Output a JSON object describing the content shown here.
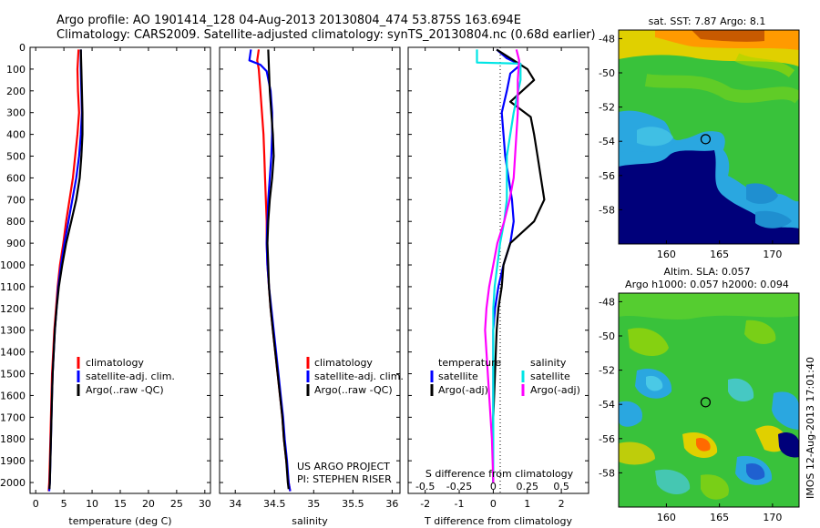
{
  "header": {
    "line1": "Argo profile: AO 1901414_128 04-Aug-2013 20130804_474 53.875S 163.694E",
    "line2": "Climatology: CARS2009. Satellite-adjusted climatology: synTS_20130804.nc (0.68d earlier)"
  },
  "credits": {
    "line1": "US ARGO PROJECT",
    "line2": "PI: STEPHEN RISER",
    "imos": "IMOS 12-Aug-2013 17:01:40"
  },
  "colors": {
    "climatology": "#ff0000",
    "satellite": "#0000ff",
    "argo": "#000000",
    "sat_diff_T": "#0000ff",
    "sat_diff_S": "#00e5e5",
    "argo_diff_S": "#ff00ff"
  },
  "chart_data": [
    {
      "type": "line",
      "id": "temperature",
      "xlabel": "temperature (deg C)",
      "xlim": [
        -1,
        31
      ],
      "xticks": [
        "0",
        "5",
        "10",
        "15",
        "20",
        "25",
        "30"
      ],
      "ylim": [
        2050,
        0
      ],
      "yticks": [
        "0",
        "100",
        "200",
        "300",
        "400",
        "500",
        "600",
        "700",
        "800",
        "900",
        "1000",
        "1100",
        "1200",
        "1300",
        "1400",
        "1500",
        "1600",
        "1700",
        "1800",
        "1900",
        "2000"
      ],
      "legend": [
        "climatology",
        "satellite-adj. clim.",
        "Argo(..raw -QC)"
      ],
      "series": [
        {
          "name": "climatology",
          "color": "#ff0000",
          "points": [
            [
              7.6,
              10
            ],
            [
              7.4,
              100
            ],
            [
              7.5,
              200
            ],
            [
              7.7,
              300
            ],
            [
              7.4,
              400
            ],
            [
              7.0,
              500
            ],
            [
              6.6,
              600
            ],
            [
              6.0,
              700
            ],
            [
              5.4,
              800
            ],
            [
              4.9,
              900
            ],
            [
              4.3,
              1000
            ],
            [
              3.9,
              1100
            ],
            [
              3.6,
              1200
            ],
            [
              3.3,
              1300
            ],
            [
              3.1,
              1400
            ],
            [
              2.9,
              1500
            ],
            [
              2.8,
              1600
            ],
            [
              2.7,
              1700
            ],
            [
              2.6,
              1800
            ],
            [
              2.5,
              1900
            ],
            [
              2.4,
              2000
            ],
            [
              2.3,
              2040
            ]
          ]
        },
        {
          "name": "satellite-adj. clim.",
          "color": "#0000ff",
          "points": [
            [
              8.0,
              10
            ],
            [
              8.0,
              100
            ],
            [
              8.1,
              200
            ],
            [
              8.2,
              300
            ],
            [
              8.0,
              400
            ],
            [
              7.7,
              500
            ],
            [
              7.2,
              600
            ],
            [
              6.5,
              700
            ],
            [
              5.8,
              800
            ],
            [
              5.1,
              900
            ],
            [
              4.5,
              1000
            ],
            [
              4.0,
              1100
            ],
            [
              3.7,
              1200
            ],
            [
              3.4,
              1300
            ],
            [
              3.2,
              1400
            ],
            [
              3.0,
              1500
            ],
            [
              2.9,
              1600
            ],
            [
              2.8,
              1700
            ],
            [
              2.7,
              1800
            ],
            [
              2.6,
              1900
            ],
            [
              2.5,
              2000
            ],
            [
              2.4,
              2040
            ]
          ]
        },
        {
          "name": "Argo(..raw -QC)",
          "color": "#000000",
          "points": [
            [
              8.0,
              10
            ],
            [
              8.1,
              100
            ],
            [
              8.2,
              200
            ],
            [
              8.3,
              300
            ],
            [
              8.3,
              400
            ],
            [
              8.1,
              500
            ],
            [
              7.8,
              600
            ],
            [
              7.2,
              700
            ],
            [
              6.3,
              800
            ],
            [
              5.4,
              900
            ],
            [
              4.7,
              1000
            ],
            [
              4.1,
              1100
            ],
            [
              3.7,
              1200
            ],
            [
              3.4,
              1300
            ],
            [
              3.2,
              1400
            ],
            [
              3.0,
              1500
            ],
            [
              2.9,
              1600
            ],
            [
              2.8,
              1700
            ],
            [
              2.7,
              1800
            ],
            [
              2.6,
              1900
            ],
            [
              2.5,
              2000
            ],
            [
              2.45,
              2030
            ]
          ]
        }
      ]
    },
    {
      "type": "line",
      "id": "salinity",
      "xlabel": "salinity",
      "xlim": [
        33.8,
        36.1
      ],
      "xticks": [
        "34",
        "34.5",
        "35",
        "35.5",
        "36"
      ],
      "ylim": [
        2050,
        0
      ],
      "legend": [
        "climatology",
        "satellite-adj. clim.",
        "Argo(..raw -QC)"
      ],
      "series": [
        {
          "name": "climatology",
          "color": "#ff0000",
          "points": [
            [
              34.3,
              10
            ],
            [
              34.28,
              60
            ],
            [
              34.3,
              100
            ],
            [
              34.32,
              200
            ],
            [
              34.34,
              300
            ],
            [
              34.36,
              400
            ],
            [
              34.37,
              500
            ],
            [
              34.38,
              600
            ],
            [
              34.39,
              700
            ],
            [
              34.4,
              800
            ],
            [
              34.4,
              900
            ],
            [
              34.41,
              1000
            ],
            [
              34.43,
              1100
            ],
            [
              34.45,
              1200
            ],
            [
              34.48,
              1300
            ],
            [
              34.51,
              1400
            ],
            [
              34.54,
              1500
            ],
            [
              34.57,
              1600
            ],
            [
              34.6,
              1700
            ],
            [
              34.62,
              1800
            ],
            [
              34.65,
              1900
            ],
            [
              34.68,
              2000
            ],
            [
              34.7,
              2040
            ]
          ]
        },
        {
          "name": "satellite-adj. clim.",
          "color": "#0000ff",
          "points": [
            [
              34.2,
              10
            ],
            [
              34.18,
              60
            ],
            [
              34.32,
              80
            ],
            [
              34.4,
              110
            ],
            [
              34.45,
              200
            ],
            [
              34.47,
              300
            ],
            [
              34.47,
              400
            ],
            [
              34.46,
              500
            ],
            [
              34.44,
              600
            ],
            [
              34.42,
              700
            ],
            [
              34.41,
              800
            ],
            [
              34.4,
              900
            ],
            [
              34.41,
              1000
            ],
            [
              34.43,
              1100
            ],
            [
              34.46,
              1200
            ],
            [
              34.49,
              1300
            ],
            [
              34.52,
              1400
            ],
            [
              34.55,
              1500
            ],
            [
              34.58,
              1600
            ],
            [
              34.61,
              1700
            ],
            [
              34.63,
              1800
            ],
            [
              34.66,
              1900
            ],
            [
              34.68,
              2000
            ],
            [
              34.7,
              2040
            ]
          ]
        },
        {
          "name": "Argo(..raw -QC)",
          "color": "#000000",
          "points": [
            [
              34.42,
              10
            ],
            [
              34.43,
              100
            ],
            [
              34.44,
              200
            ],
            [
              34.46,
              300
            ],
            [
              34.48,
              400
            ],
            [
              34.49,
              500
            ],
            [
              34.47,
              600
            ],
            [
              34.44,
              700
            ],
            [
              34.42,
              800
            ],
            [
              34.41,
              900
            ],
            [
              34.42,
              1000
            ],
            [
              34.43,
              1100
            ],
            [
              34.45,
              1200
            ],
            [
              34.48,
              1300
            ],
            [
              34.51,
              1400
            ],
            [
              34.54,
              1500
            ],
            [
              34.57,
              1600
            ],
            [
              34.6,
              1700
            ],
            [
              34.62,
              1800
            ],
            [
              34.65,
              1900
            ],
            [
              34.67,
              2000
            ],
            [
              34.68,
              2030
            ]
          ]
        }
      ]
    },
    {
      "type": "line",
      "id": "differences",
      "xlabel": "T difference from climatology",
      "xlabel_top": "S difference from climatology",
      "xlim": [
        -2.5,
        2.8
      ],
      "xticks": [
        "-2",
        "-1",
        "0",
        "1",
        "2"
      ],
      "xticks_top": [
        "-0.5",
        "-0.25",
        "0",
        "0.25",
        "0.5"
      ],
      "ylim": [
        2050,
        0
      ],
      "legend_titles": [
        "temperature",
        "salinity"
      ],
      "legend": [
        "satellite",
        "Argo(-adj)",
        "satellite",
        "Argo(-adj)"
      ],
      "series": [
        {
          "name": "satellite",
          "group": "temperature",
          "color": "#0000ff",
          "points": [
            [
              0.1,
              10
            ],
            [
              0.4,
              50
            ],
            [
              0.8,
              80
            ],
            [
              0.5,
              120
            ],
            [
              0.4,
              200
            ],
            [
              0.25,
              300
            ],
            [
              0.3,
              400
            ],
            [
              0.35,
              500
            ],
            [
              0.45,
              600
            ],
            [
              0.55,
              700
            ],
            [
              0.6,
              800
            ],
            [
              0.5,
              900
            ],
            [
              0.3,
              1000
            ],
            [
              0.15,
              1100
            ],
            [
              0.05,
              1200
            ],
            [
              0.0,
              1300
            ],
            [
              0.0,
              1500
            ],
            [
              0.0,
              2000
            ]
          ]
        },
        {
          "name": "Argo(-adj)",
          "group": "temperature",
          "color": "#000000",
          "points": [
            [
              0.1,
              10
            ],
            [
              0.6,
              60
            ],
            [
              1.0,
              100
            ],
            [
              1.2,
              150
            ],
            [
              0.5,
              250
            ],
            [
              1.1,
              320
            ],
            [
              1.2,
              400
            ],
            [
              1.3,
              500
            ],
            [
              1.4,
              600
            ],
            [
              1.5,
              700
            ],
            [
              1.2,
              800
            ],
            [
              0.5,
              900
            ],
            [
              0.3,
              1000
            ],
            [
              0.25,
              1100
            ],
            [
              0.15,
              1200
            ],
            [
              0.1,
              1300
            ],
            [
              0.05,
              1500
            ],
            [
              0.0,
              1700
            ],
            [
              0.0,
              2000
            ]
          ]
        },
        {
          "name": "satellite",
          "group": "salinity",
          "color": "#00e5e5",
          "points": [
            [
              -0.12,
              10
            ],
            [
              -0.12,
              70
            ],
            [
              0.2,
              75
            ],
            [
              0.2,
              150
            ],
            [
              0.15,
              300
            ],
            [
              0.1,
              500
            ],
            [
              0.1,
              700
            ],
            [
              0.08,
              800
            ],
            [
              0.05,
              900
            ],
            [
              0.03,
              1000
            ],
            [
              0.01,
              1100
            ],
            [
              0.0,
              1200
            ],
            [
              0.0,
              2000
            ]
          ]
        },
        {
          "name": "Argo(-adj)",
          "group": "salinity",
          "color": "#ff00ff",
          "points": [
            [
              0.17,
              10
            ],
            [
              0.19,
              60
            ],
            [
              0.18,
              150
            ],
            [
              0.18,
              300
            ],
            [
              0.17,
              400
            ],
            [
              0.16,
              500
            ],
            [
              0.15,
              600
            ],
            [
              0.12,
              700
            ],
            [
              0.08,
              800
            ],
            [
              0.03,
              900
            ],
            [
              0.0,
              1000
            ],
            [
              -0.03,
              1100
            ],
            [
              -0.05,
              1200
            ],
            [
              -0.06,
              1300
            ],
            [
              -0.05,
              1400
            ],
            [
              -0.03,
              1600
            ],
            [
              -0.01,
              1800
            ],
            [
              0.0,
              2000
            ]
          ]
        }
      ]
    },
    {
      "type": "heatmap",
      "id": "sst-map",
      "title": "sat. SST: 7.87 Argo: 8.1",
      "xlim": [
        155.5,
        172.5
      ],
      "ylim": [
        -60,
        -47.5
      ],
      "xticks": [
        "160",
        "165",
        "170"
      ],
      "yticks": [
        "-48",
        "-50",
        "-52",
        "-54",
        "-56",
        "-58"
      ],
      "marker": {
        "lon": 163.694,
        "lat": -53.875
      }
    },
    {
      "type": "heatmap",
      "id": "sla-map",
      "title": "Altim. SLA: 0.057",
      "subtitle": "Argo h1000: 0.057 h2000: 0.094",
      "xlim": [
        155.5,
        172.5
      ],
      "ylim": [
        -60,
        -47.5
      ],
      "xticks": [
        "160",
        "165",
        "170"
      ],
      "yticks": [
        "-48",
        "-50",
        "-52",
        "-54",
        "-56",
        "-58"
      ],
      "marker": {
        "lon": 163.694,
        "lat": -53.875
      }
    }
  ]
}
